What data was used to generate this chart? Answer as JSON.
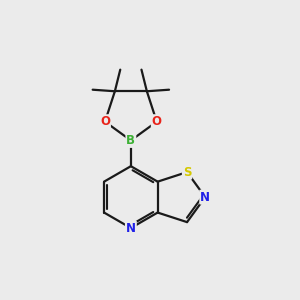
{
  "background_color": "#ebebeb",
  "bond_color": "#1a1a1a",
  "atom_colors": {
    "B": "#3cb034",
    "O": "#e8231a",
    "N": "#2020e8",
    "S": "#d4c800",
    "C": "#1a1a1a"
  },
  "figsize": [
    3.0,
    3.0
  ],
  "dpi": 100,
  "lw": 1.6
}
